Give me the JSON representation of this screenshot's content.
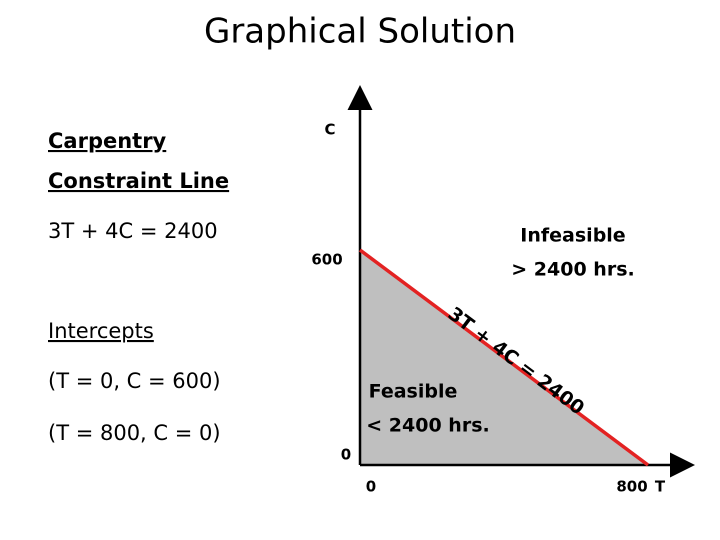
{
  "title": "Graphical Solution",
  "left": {
    "heading_line1": "Carpentry",
    "heading_line2": "Constraint Line",
    "equation": "3T + 4C = 2400",
    "intercepts_heading": "Intercepts",
    "intercept1": "(T = 0, C = 600)",
    "intercept2": "(T = 800, C = 0)"
  },
  "graph": {
    "y_axis_label": "C",
    "x_axis_label": "T",
    "y_tick": "600",
    "y_origin": "0",
    "x_origin": "0",
    "x_tick": "800",
    "line_label": "3T + 4C = 2400",
    "infeasible_line1": "Infeasible",
    "infeasible_line2": "> 2400 hrs.",
    "feasible_line1": "Feasible",
    "feasible_line2": "< 2400 hrs."
  }
}
